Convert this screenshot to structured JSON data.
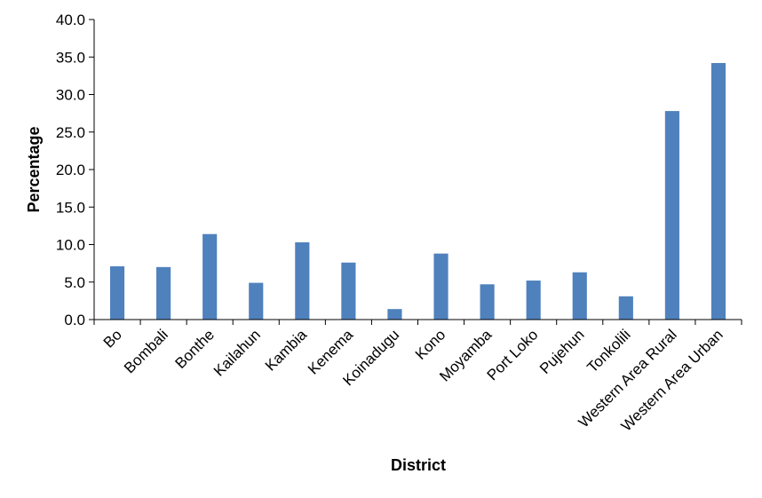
{
  "chart_data": {
    "type": "bar",
    "title": "",
    "xlabel": "District",
    "ylabel": "Percentage",
    "ylim": [
      0,
      40
    ],
    "yticks": [
      "0.0",
      "5.0",
      "10.0",
      "15.0",
      "20.0",
      "25.0",
      "30.0",
      "35.0",
      "40.0"
    ],
    "grid": false,
    "legend": "none",
    "bar_color": "#4f81bd",
    "categories": [
      "Bo",
      "Bombali",
      "Bonthe",
      "Kailahun",
      "Kambia",
      "Kenema",
      "Koinadugu",
      "Kono",
      "Moyamba",
      "Port Loko",
      "Pujehun",
      "Tonkolili",
      "Western Area Rural",
      "Western Area Urban"
    ],
    "values": [
      7.1,
      7.0,
      11.4,
      4.9,
      10.3,
      7.6,
      1.4,
      8.8,
      4.7,
      5.2,
      6.3,
      3.1,
      27.8,
      34.2
    ]
  }
}
